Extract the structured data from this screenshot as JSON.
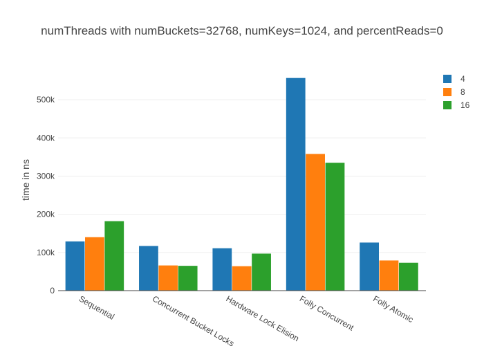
{
  "chart_data": {
    "type": "bar",
    "title": "numThreads with numBuckets=32768, numKeys=1024, and percentReads=0",
    "xlabel": "",
    "ylabel": "time in ns",
    "categories": [
      "Sequential",
      "Concurrent Bucket Locks",
      "Hardware Lock Elision",
      "Folly Concurrent",
      "Folly Atomic"
    ],
    "series": [
      {
        "name": "4",
        "color": "#1f77b4",
        "values": [
          129000,
          117000,
          111000,
          557000,
          126000
        ]
      },
      {
        "name": "8",
        "color": "#ff7f0e",
        "values": [
          140000,
          66000,
          64000,
          358000,
          79000
        ]
      },
      {
        "name": "16",
        "color": "#2ca02c",
        "values": [
          182000,
          65000,
          97000,
          335000,
          73000
        ]
      }
    ],
    "ylim": [
      0,
      580000
    ],
    "yticks": [
      0,
      100000,
      200000,
      300000,
      400000,
      500000
    ],
    "ytick_labels": [
      "0",
      "100k",
      "200k",
      "300k",
      "400k",
      "500k"
    ],
    "grid": true,
    "legend_position": "top-right"
  }
}
